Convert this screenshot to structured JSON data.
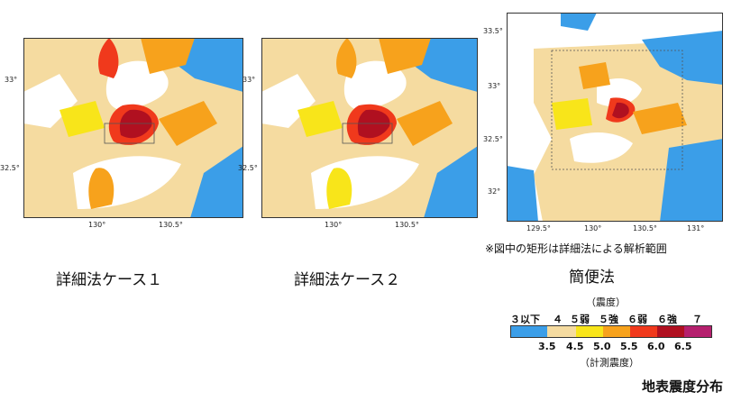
{
  "maps": [
    {
      "id": "case1",
      "caption": "詳細法ケース１",
      "y_ticks": [
        "33°",
        "32.5°"
      ],
      "x_ticks": [
        "130°",
        "130.5°"
      ]
    },
    {
      "id": "case2",
      "caption": "詳細法ケース２",
      "y_ticks": [
        "33°",
        "32.5°"
      ],
      "x_ticks": [
        "130°",
        "130.5°"
      ]
    },
    {
      "id": "simple",
      "caption": "簡便法",
      "y_ticks": [
        "33.5°",
        "33°",
        "32.5°",
        "32°"
      ],
      "x_ticks": [
        "129.5°",
        "130°",
        "130.5°",
        "131°"
      ]
    }
  ],
  "note": "※図中の矩形は詳細法による解析範囲",
  "legend": {
    "title": "（震度）",
    "levels": [
      "３以下",
      "４",
      "５弱",
      "５強",
      "６弱",
      "６強",
      "７"
    ],
    "instrumental_values": [
      "3.5",
      "4.5",
      "5.0",
      "5.5",
      "6.0",
      "6.5"
    ],
    "subtitle": "（計測震度）",
    "colors": [
      "#3b9ee8",
      "#f5dba0",
      "#f8e51a",
      "#f7a21c",
      "#f0391c",
      "#b01020",
      "#b5206e"
    ]
  },
  "footer_title": "地表震度分布"
}
